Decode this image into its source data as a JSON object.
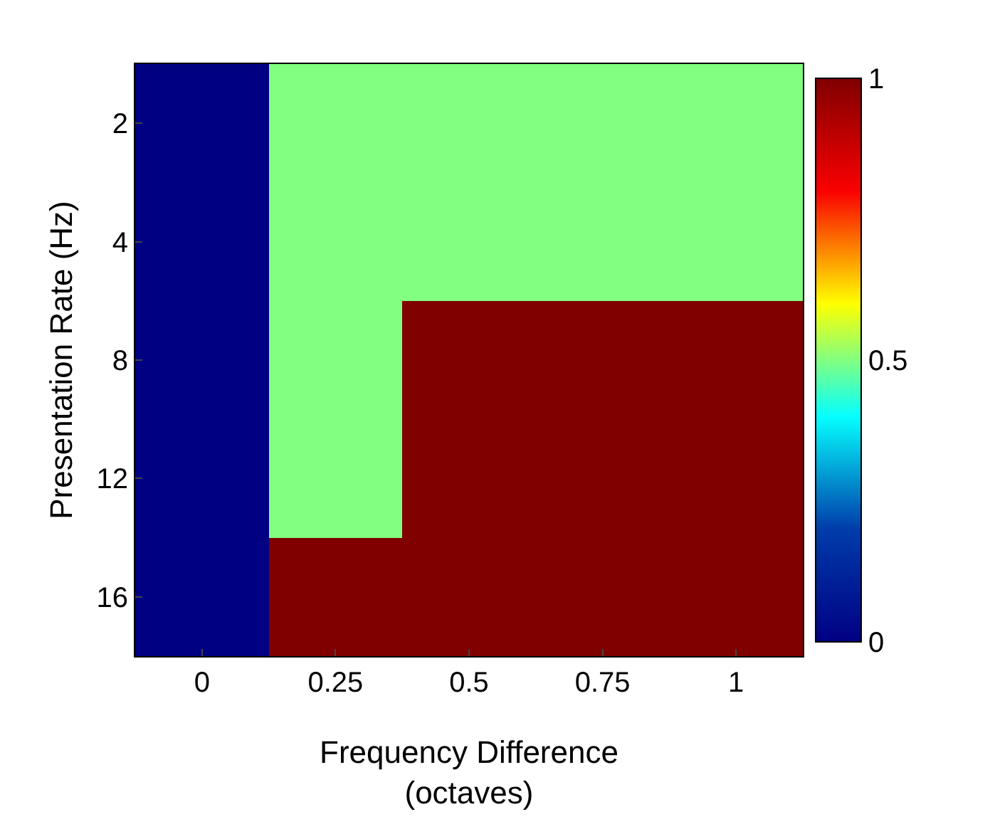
{
  "chart_data": {
    "type": "heatmap",
    "xlabel": "Frequency Difference\n(octaves)",
    "ylabel": "Presentation Rate (Hz)",
    "categories": [
      "0",
      "0.25",
      "0.5",
      "0.75",
      "1"
    ],
    "y_categories": [
      "2",
      "4",
      "8",
      "12",
      "16"
    ],
    "cells": [
      [
        0,
        0.5,
        0.5,
        0.5,
        0.5
      ],
      [
        0,
        0.5,
        0.5,
        0.5,
        0.5
      ],
      [
        0,
        0.5,
        1,
        1,
        1
      ],
      [
        0,
        0.5,
        1,
        1,
        1
      ],
      [
        0,
        1,
        1,
        1,
        1
      ]
    ],
    "clim": [
      0,
      1
    ],
    "cticks": [
      0,
      0.5,
      1
    ]
  }
}
